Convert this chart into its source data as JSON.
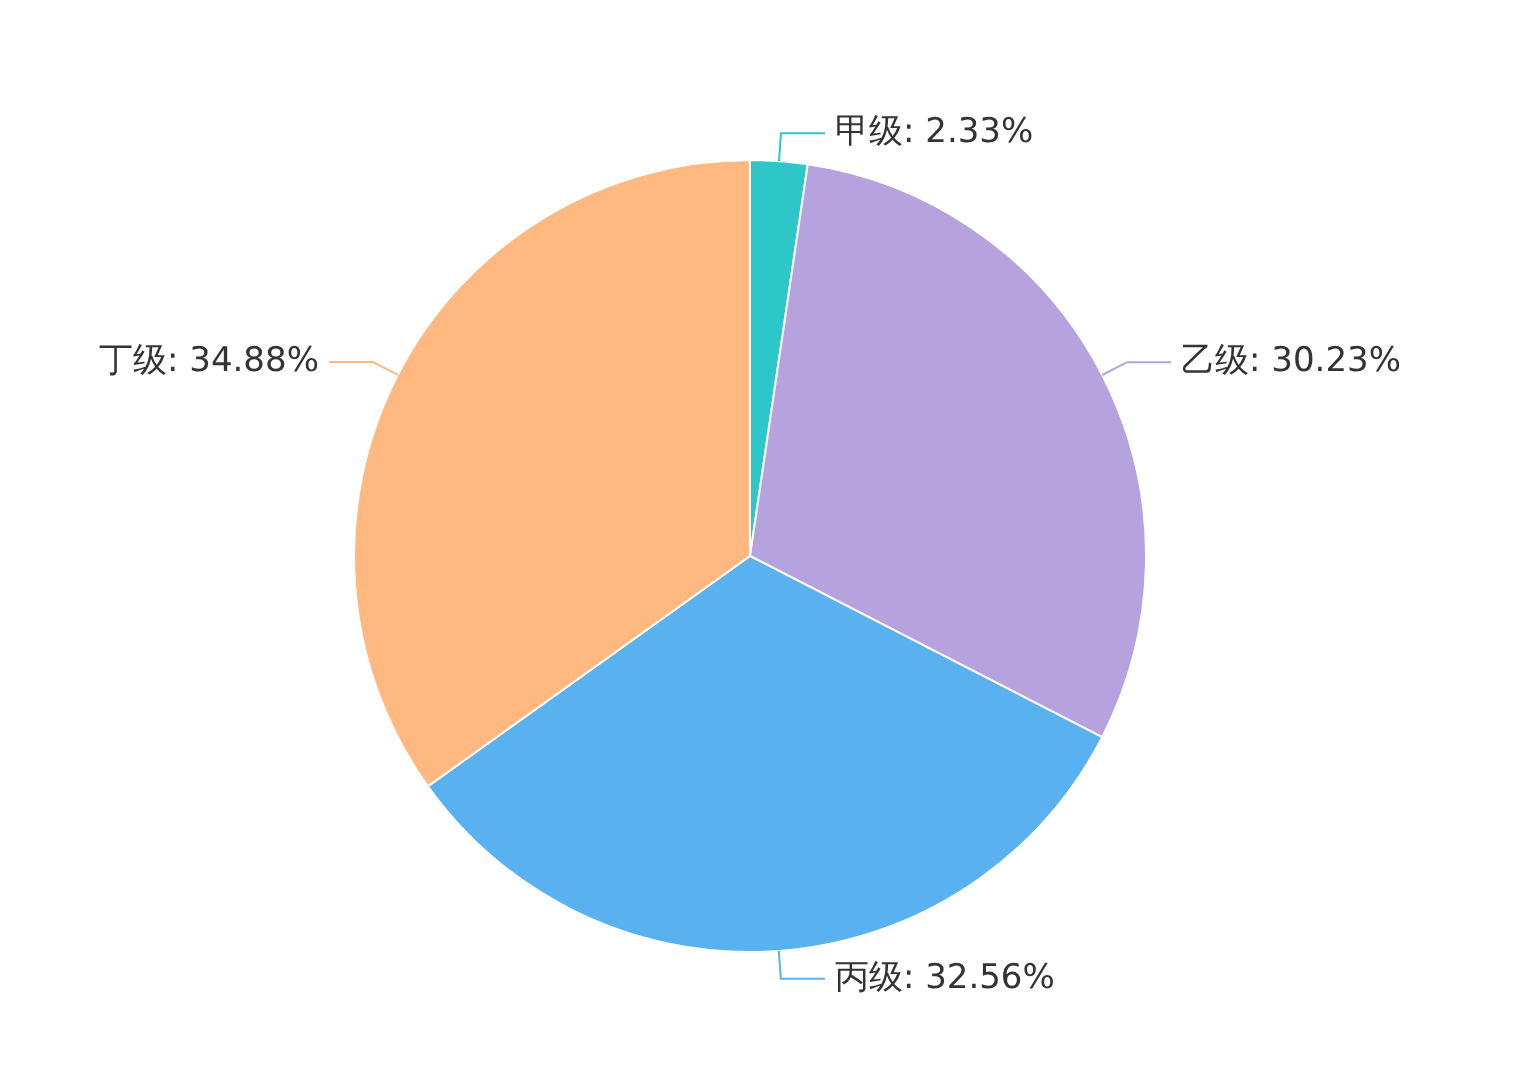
{
  "chart_data": {
    "type": "pie",
    "categories": [
      "甲级",
      "乙级",
      "丙级",
      "丁级"
    ],
    "values": [
      2.33,
      30.23,
      32.56,
      34.88
    ],
    "value_labels": [
      "2.33%",
      "30.23%",
      "32.56%",
      "34.88%"
    ],
    "colors": [
      "#2ec7c9",
      "#b6a2de",
      "#5ab1ef",
      "#ffb980"
    ]
  }
}
